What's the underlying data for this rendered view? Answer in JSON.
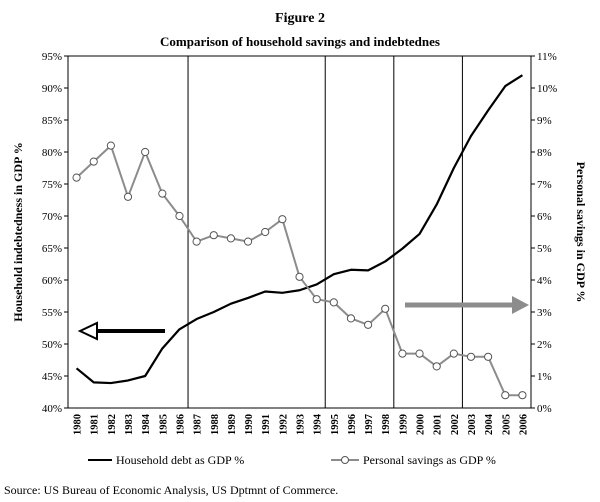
{
  "figure_label": "Figure 2",
  "chart_data": {
    "type": "line",
    "title": "Comparison of household savings and indebtednes",
    "ylabel_left": "Household indebtedness in GDP %",
    "ylabel_right": "Personal savings in GDP %",
    "ylim_left": [
      40,
      95
    ],
    "ylim_right": [
      0,
      11
    ],
    "yticks_left": [
      "40%",
      "45%",
      "50%",
      "55%",
      "60%",
      "65%",
      "70%",
      "75%",
      "80%",
      "85%",
      "90%",
      "95%"
    ],
    "yticks_right": [
      "0%",
      "1%",
      "2%",
      "3%",
      "4%",
      "5%",
      "6%",
      "7%",
      "8%",
      "9%",
      "10%",
      "11%"
    ],
    "categories": [
      "1980",
      "1981",
      "1982",
      "1983",
      "1984",
      "1985",
      "1986",
      "1987",
      "1988",
      "1989",
      "1990",
      "1991",
      "1992",
      "1993",
      "1994",
      "1995",
      "1996",
      "1997",
      "1998",
      "1999",
      "2000",
      "2001",
      "2002",
      "2003",
      "2004",
      "2005",
      "2006"
    ],
    "vertical_lines_after": [
      "1986",
      "1994",
      "1998",
      "2002"
    ],
    "grid": "vertical separators only",
    "series": [
      {
        "name": "Household debt as GDP %",
        "axis": "left",
        "color": "#000000",
        "marker": "none",
        "values": [
          46.2,
          44.0,
          43.9,
          44.3,
          45.0,
          49.3,
          52.3,
          53.9,
          55.0,
          56.3,
          57.2,
          58.2,
          58.0,
          58.4,
          59.3,
          60.9,
          61.6,
          61.5,
          62.9,
          64.9,
          67.2,
          71.8,
          77.5,
          82.5,
          86.5,
          90.3,
          92.0
        ]
      },
      {
        "name": "Personal savings as GDP %",
        "axis": "right",
        "color": "#8c8c8c",
        "marker": "circle",
        "values": [
          7.2,
          7.7,
          8.2,
          6.6,
          8.0,
          6.7,
          6.0,
          5.2,
          5.4,
          5.3,
          5.2,
          5.5,
          5.9,
          4.1,
          3.4,
          3.3,
          2.8,
          2.6,
          3.1,
          1.7,
          1.7,
          1.3,
          1.7,
          1.6,
          1.6,
          0.4,
          0.4
        ]
      }
    ],
    "annotations": [
      {
        "type": "arrow",
        "direction": "left",
        "color": "#000000",
        "points_to": "left axis"
      },
      {
        "type": "arrow",
        "direction": "right",
        "color": "#8c8c8c",
        "points_to": "right axis"
      }
    ],
    "legend": "bottom"
  },
  "source": "Source: US Bureau of Economic Analysis, US Dptmnt of Commerce."
}
